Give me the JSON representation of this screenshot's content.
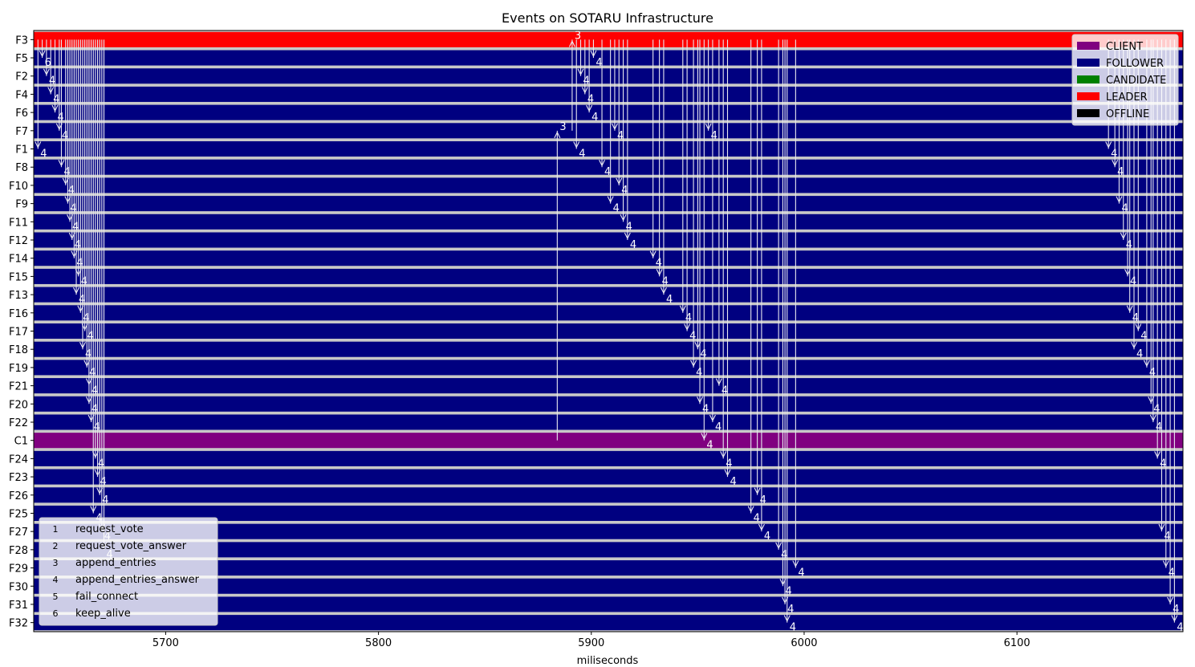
{
  "chart_data": {
    "type": "timeline",
    "title": "Events on SOTARU Infrastructure",
    "xlabel": "miliseconds",
    "ylabel": "",
    "xlim": [
      5638,
      6178
    ],
    "xticks": [
      5700,
      5800,
      5900,
      6000,
      6100
    ],
    "grid": false,
    "lanes": [
      "F3",
      "F5",
      "F2",
      "F4",
      "F6",
      "F7",
      "F1",
      "F8",
      "F10",
      "F9",
      "F11",
      "F12",
      "F14",
      "F15",
      "F13",
      "F16",
      "F17",
      "F18",
      "F19",
      "F21",
      "F20",
      "F22",
      "C1",
      "F24",
      "F23",
      "F26",
      "F25",
      "F27",
      "F28",
      "F29",
      "F30",
      "F31",
      "F32"
    ],
    "lane_roles": {
      "F3": "LEADER",
      "C1": "CLIENT",
      "default": "FOLLOWER"
    },
    "state_legend": {
      "placement": "top-right",
      "entries": [
        {
          "name": "CLIENT",
          "color": "#800080"
        },
        {
          "name": "FOLLOWER",
          "color": "#000080"
        },
        {
          "name": "CANDIDATE",
          "color": "#008000"
        },
        {
          "name": "LEADER",
          "color": "#ff0000"
        },
        {
          "name": "OFFLINE",
          "color": "#000000"
        }
      ]
    },
    "event_legend": {
      "placement": "lower-left",
      "entries": [
        {
          "code": "1",
          "name": "request_vote"
        },
        {
          "code": "2",
          "name": "request_vote_answer"
        },
        {
          "code": "3",
          "name": "append_entries"
        },
        {
          "code": "4",
          "name": "append_entries_answer"
        },
        {
          "code": "5",
          "name": "fail_connect"
        },
        {
          "code": "6",
          "name": "keep_alive"
        }
      ]
    },
    "events": [
      {
        "x": 5640,
        "from": "F3",
        "to": "F1",
        "code": "4"
      },
      {
        "x": 5642,
        "from": "F3",
        "to": "F5",
        "code": "6"
      },
      {
        "x": 5644,
        "from": "F3",
        "to": "F2",
        "code": "4"
      },
      {
        "x": 5646,
        "from": "F3",
        "to": "F4",
        "code": "4"
      },
      {
        "x": 5648,
        "from": "F3",
        "to": "F6",
        "code": "4"
      },
      {
        "x": 5650,
        "from": "F3",
        "to": "F7",
        "code": "4"
      },
      {
        "x": 5651,
        "from": "F3",
        "to": "F8",
        "code": "4"
      },
      {
        "x": 5653,
        "from": "F3",
        "to": "F10",
        "code": "4"
      },
      {
        "x": 5654,
        "from": "F3",
        "to": "F9",
        "code": "4"
      },
      {
        "x": 5655,
        "from": "F3",
        "to": "F11",
        "code": "4"
      },
      {
        "x": 5656,
        "from": "F3",
        "to": "F12",
        "code": "4"
      },
      {
        "x": 5657,
        "from": "F3",
        "to": "F14",
        "code": "4"
      },
      {
        "x": 5658,
        "from": "F3",
        "to": "F13",
        "code": "4"
      },
      {
        "x": 5659,
        "from": "F3",
        "to": "F15",
        "code": "4"
      },
      {
        "x": 5660,
        "from": "F3",
        "to": "F16",
        "code": "4"
      },
      {
        "x": 5661,
        "from": "F3",
        "to": "F18",
        "code": "4"
      },
      {
        "x": 5662,
        "from": "F3",
        "to": "F17",
        "code": "4"
      },
      {
        "x": 5663,
        "from": "F3",
        "to": "F19",
        "code": "4"
      },
      {
        "x": 5664,
        "from": "F3",
        "to": "F20",
        "code": "4"
      },
      {
        "x": 5664,
        "from": "F3",
        "to": "F21",
        "code": "4"
      },
      {
        "x": 5665,
        "from": "F3",
        "to": "F22",
        "code": "4"
      },
      {
        "x": 5666,
        "from": "F3",
        "to": "F25",
        "code": "4"
      },
      {
        "x": 5667,
        "from": "F3",
        "to": "F24",
        "code": "4"
      },
      {
        "x": 5668,
        "from": "F3",
        "to": "F23",
        "code": "4"
      },
      {
        "x": 5669,
        "from": "F3",
        "to": "F26",
        "code": "4"
      },
      {
        "x": 5670,
        "from": "F3",
        "to": "F27",
        "code": "4"
      },
      {
        "x": 5671,
        "from": "F3",
        "to": "F28",
        "code": "4"
      },
      {
        "x": 5884,
        "from": "C1",
        "to": "F7",
        "code": "3"
      },
      {
        "x": 5891,
        "from": "F7",
        "to": "F3",
        "code": "3"
      },
      {
        "x": 5893,
        "from": "F3",
        "to": "F1",
        "code": "4"
      },
      {
        "x": 5895,
        "from": "F3",
        "to": "F2",
        "code": "4"
      },
      {
        "x": 5897,
        "from": "F3",
        "to": "F4",
        "code": "4"
      },
      {
        "x": 5899,
        "from": "F3",
        "to": "F6",
        "code": "4"
      },
      {
        "x": 5901,
        "from": "F3",
        "to": "F5",
        "code": "4"
      },
      {
        "x": 5905,
        "from": "F3",
        "to": "F8",
        "code": "4"
      },
      {
        "x": 5909,
        "from": "F3",
        "to": "F9",
        "code": "4"
      },
      {
        "x": 5911,
        "from": "F3",
        "to": "F7",
        "code": "4"
      },
      {
        "x": 5913,
        "from": "F3",
        "to": "F10",
        "code": "4"
      },
      {
        "x": 5915,
        "from": "F3",
        "to": "F11",
        "code": "4"
      },
      {
        "x": 5917,
        "from": "F3",
        "to": "F12",
        "code": "4"
      },
      {
        "x": 5929,
        "from": "F3",
        "to": "F14",
        "code": "4"
      },
      {
        "x": 5932,
        "from": "F3",
        "to": "F15",
        "code": "4"
      },
      {
        "x": 5934,
        "from": "F3",
        "to": "F13",
        "code": "4"
      },
      {
        "x": 5943,
        "from": "F3",
        "to": "F16",
        "code": "4"
      },
      {
        "x": 5945,
        "from": "F3",
        "to": "F17",
        "code": "4"
      },
      {
        "x": 5948,
        "from": "F3",
        "to": "F19",
        "code": "4"
      },
      {
        "x": 5950,
        "from": "F3",
        "to": "F18",
        "code": "4"
      },
      {
        "x": 5951,
        "from": "F3",
        "to": "F20",
        "code": "4"
      },
      {
        "x": 5953,
        "from": "F3",
        "to": "C1",
        "code": "4"
      },
      {
        "x": 5955,
        "from": "F3",
        "to": "F7",
        "code": "4"
      },
      {
        "x": 5957,
        "from": "F3",
        "to": "F22",
        "code": "4"
      },
      {
        "x": 5960,
        "from": "F3",
        "to": "F21",
        "code": "4"
      },
      {
        "x": 5962,
        "from": "F3",
        "to": "F24",
        "code": "4"
      },
      {
        "x": 5964,
        "from": "F3",
        "to": "F23",
        "code": "4"
      },
      {
        "x": 5975,
        "from": "F3",
        "to": "F25",
        "code": "4"
      },
      {
        "x": 5978,
        "from": "F3",
        "to": "F26",
        "code": "4"
      },
      {
        "x": 5980,
        "from": "F3",
        "to": "F27",
        "code": "4"
      },
      {
        "x": 5988,
        "from": "F3",
        "to": "F28",
        "code": "4"
      },
      {
        "x": 5990,
        "from": "F3",
        "to": "F30",
        "code": "4"
      },
      {
        "x": 5991,
        "from": "F3",
        "to": "F31",
        "code": "4"
      },
      {
        "x": 5992,
        "from": "F3",
        "to": "F32",
        "code": "4"
      },
      {
        "x": 5996,
        "from": "F3",
        "to": "F29",
        "code": "4"
      },
      {
        "x": 6143,
        "from": "F3",
        "to": "F1",
        "code": "4"
      },
      {
        "x": 6146,
        "from": "F3",
        "to": "F8",
        "code": "4"
      },
      {
        "x": 6148,
        "from": "F3",
        "to": "F9",
        "code": "4"
      },
      {
        "x": 6150,
        "from": "F3",
        "to": "F12",
        "code": "4"
      },
      {
        "x": 6152,
        "from": "F3",
        "to": "F15",
        "code": "4"
      },
      {
        "x": 6153,
        "from": "F3",
        "to": "F16",
        "code": "4"
      },
      {
        "x": 6155,
        "from": "F3",
        "to": "F18",
        "code": "4"
      },
      {
        "x": 6157,
        "from": "F3",
        "to": "F17",
        "code": "4"
      },
      {
        "x": 6161,
        "from": "F3",
        "to": "F19",
        "code": "4"
      },
      {
        "x": 6163,
        "from": "F3",
        "to": "F20",
        "code": "4"
      },
      {
        "x": 6164,
        "from": "F3",
        "to": "F22",
        "code": "4"
      },
      {
        "x": 6166,
        "from": "F3",
        "to": "F24",
        "code": "4"
      },
      {
        "x": 6168,
        "from": "F3",
        "to": "F27",
        "code": "4"
      },
      {
        "x": 6170,
        "from": "F3",
        "to": "F29",
        "code": "4"
      },
      {
        "x": 6172,
        "from": "F3",
        "to": "F31",
        "code": "4"
      },
      {
        "x": 6174,
        "from": "F3",
        "to": "F32",
        "code": "4"
      }
    ]
  }
}
